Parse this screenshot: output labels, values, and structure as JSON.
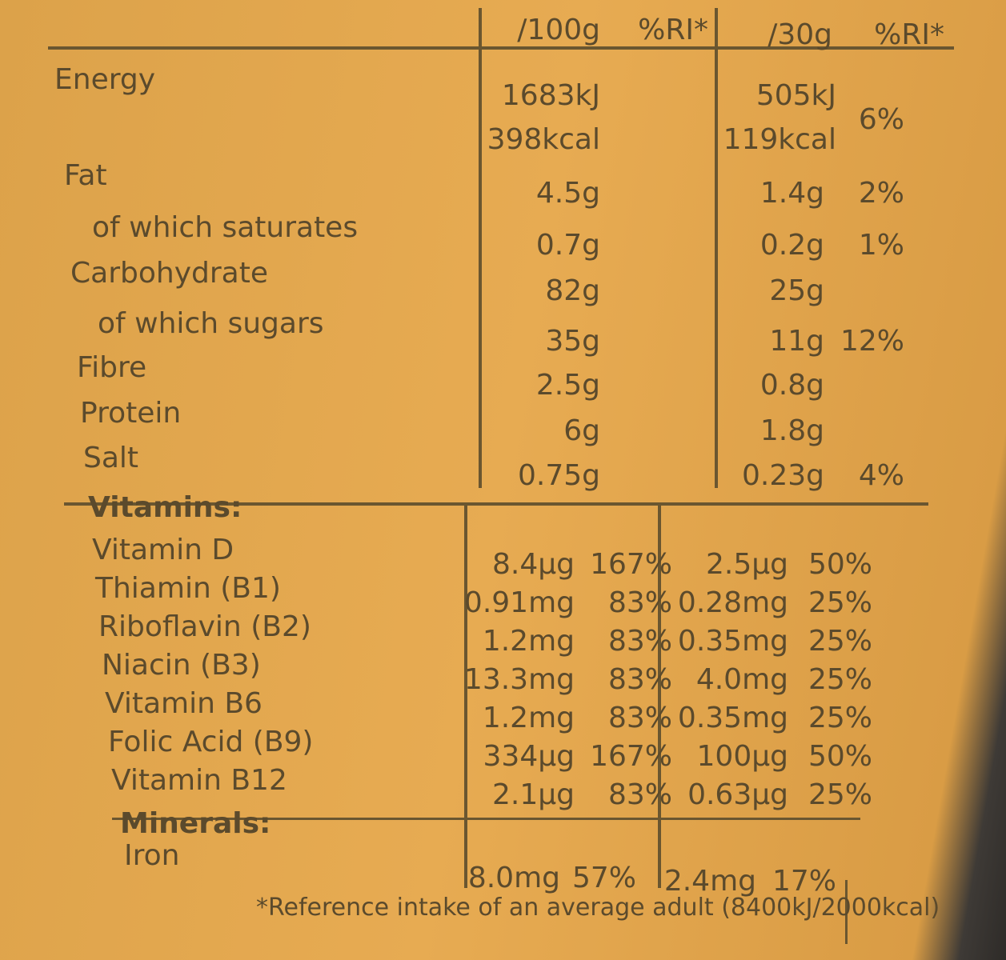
{
  "header": {
    "columns": [
      "/100g",
      "%RI*",
      "/30g",
      "%RI*"
    ]
  },
  "nutrients": [
    {
      "label": "Energy",
      "per_100g": [
        "1683kJ",
        "398kcal"
      ],
      "per_30g": [
        "505kJ",
        "119kcal"
      ],
      "ri_30g": "6%"
    },
    {
      "label": "Fat",
      "per_100g": "4.5g",
      "per_30g": "1.4g",
      "ri_30g": "2%"
    },
    {
      "label": "of which saturates",
      "per_100g": "0.7g",
      "per_30g": "0.2g",
      "ri_30g": "1%"
    },
    {
      "label": "Carbohydrate",
      "per_100g": "82g",
      "per_30g": "25g"
    },
    {
      "label": "of which sugars",
      "per_100g": "35g",
      "per_30g": "11g",
      "ri_30g": "12%"
    },
    {
      "label": "Fibre",
      "per_100g": "2.5g",
      "per_30g": "0.8g"
    },
    {
      "label": "Protein",
      "per_100g": "6g",
      "per_30g": "1.8g"
    },
    {
      "label": "Salt",
      "per_100g": "0.75g",
      "per_30g": "0.23g",
      "ri_30g": "4%"
    }
  ],
  "vitamins": {
    "heading": "Vitamins:",
    "rows": [
      {
        "label": "Vitamin D",
        "per_100g": "8.4µg",
        "ri_100g": "167%",
        "per_30g": "2.5µg",
        "ri_30g": "50%"
      },
      {
        "label": "Thiamin (B1)",
        "per_100g": "0.91mg",
        "ri_100g": "83%",
        "per_30g": "0.28mg",
        "ri_30g": "25%"
      },
      {
        "label": "Riboflavin (B2)",
        "per_100g": "1.2mg",
        "ri_100g": "83%",
        "per_30g": "0.35mg",
        "ri_30g": "25%"
      },
      {
        "label": "Niacin (B3)",
        "per_100g": "13.3mg",
        "ri_100g": "83%",
        "per_30g": "4.0mg",
        "ri_30g": "25%"
      },
      {
        "label": "Vitamin B6",
        "per_100g": "1.2mg",
        "ri_100g": "83%",
        "per_30g": "0.35mg",
        "ri_30g": "25%"
      },
      {
        "label": "Folic Acid (B9)",
        "per_100g": "334µg",
        "ri_100g": "167%",
        "per_30g": "100µg",
        "ri_30g": "50%"
      },
      {
        "label": "Vitamin B12",
        "per_100g": "2.1µg",
        "ri_100g": "83%",
        "per_30g": "0.63µg",
        "ri_30g": "25%"
      }
    ]
  },
  "minerals": {
    "heading": "Minerals:",
    "rows": [
      {
        "label": "Iron",
        "per_100g": "8.0mg",
        "ri_100g": "57%",
        "per_30g": "2.4mg",
        "ri_30g": "17%"
      }
    ]
  },
  "footnote": "*Reference intake of an average adult (8400kJ/2000kcal)"
}
